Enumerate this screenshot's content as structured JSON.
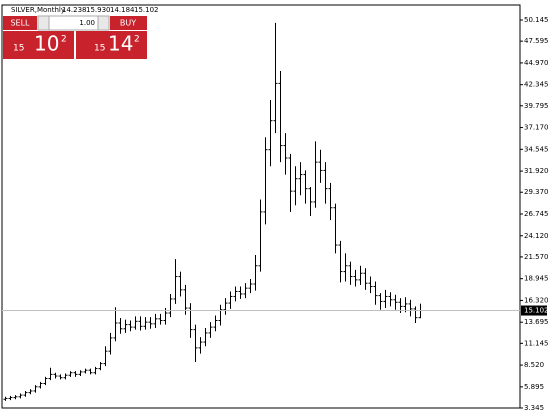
{
  "header": {
    "symbol": "SILVER,Monthly",
    "open": "14.238",
    "high": "15.930",
    "low": "14.184",
    "close": "15.102"
  },
  "trade_panel": {
    "sell": "SELL",
    "buy": "BUY",
    "volume": "1.00",
    "bid": {
      "prefix": "15",
      "big": "10",
      "sup": "2"
    },
    "ask": {
      "prefix": "15",
      "big": "14",
      "sup": "2"
    }
  },
  "chart_data": {
    "type": "ohlc",
    "color": "#000000",
    "ylim": [
      3.345,
      51.954
    ],
    "yticks": [
      3.345,
      5.895,
      {
        "value": 8.52,
        "label": "8.520"
      },
      11.145,
      13.695,
      {
        "value": 16.32,
        "label": "16.320"
      },
      18.945,
      {
        "value": 21.57,
        "label": "21.570"
      },
      {
        "value": 24.12,
        "label": "24.120"
      },
      26.745,
      {
        "value": 29.37,
        "label": "29.370"
      },
      {
        "value": 31.92,
        "label": "31.920"
      },
      34.545,
      {
        "value": 37.17,
        "label": "37.170"
      },
      39.795,
      42.345,
      {
        "value": 44.97,
        "label": "44.970"
      },
      47.595,
      50.145
    ],
    "current_price": {
      "value": 15.102,
      "label": "15.102"
    },
    "open": [
      4.4,
      4.5,
      4.6,
      4.7,
      4.9,
      5.2,
      5.4,
      5.9,
      6.3,
      6.9,
      7.4,
      7.2,
      7.0,
      7.3,
      7.6,
      7.4,
      7.7,
      7.9,
      7.6,
      8.1,
      8.7,
      10.2,
      11.8,
      13.6,
      12.9,
      13.4,
      13.1,
      13.8,
      13.2,
      13.7,
      13.5,
      14.1,
      13.9,
      14.8,
      16.5,
      19.2,
      17.6,
      15.4,
      12.8,
      10.6,
      11.3,
      12.4,
      13.1,
      13.9,
      15.2,
      16.0,
      16.8,
      17.4,
      17.1,
      17.8,
      18.3,
      20.5,
      27.0,
      34.5,
      38.0,
      42.5,
      35.0,
      33.5,
      29.5,
      31.0,
      31.5,
      29.8,
      28.2,
      33.0,
      32.0,
      29.8,
      27.5,
      23.0,
      19.8,
      20.5,
      19.2,
      18.8,
      19.6,
      18.4,
      18.0,
      16.9,
      16.2,
      16.8,
      16.4,
      16.1,
      15.6,
      15.9,
      15.3,
      14.238
    ],
    "high": [
      4.7,
      4.8,
      4.9,
      5.1,
      5.4,
      5.6,
      6.1,
      6.5,
      7.1,
      8.2,
      7.6,
      7.4,
      7.5,
      7.8,
      7.8,
      7.9,
      8.1,
      8.1,
      8.3,
      8.9,
      10.8,
      12.4,
      15.5,
      14.2,
      14.0,
      13.9,
      14.4,
      14.4,
      14.3,
      14.3,
      14.7,
      14.7,
      15.4,
      17.1,
      21.3,
      19.8,
      18.2,
      16.0,
      13.4,
      11.9,
      13.0,
      13.7,
      14.5,
      15.8,
      16.6,
      17.4,
      18.0,
      18.0,
      18.4,
      18.9,
      21.8,
      28.5,
      36.0,
      40.5,
      49.8,
      44.0,
      36.5,
      34.0,
      32.5,
      33.0,
      32.0,
      30.0,
      35.5,
      34.5,
      33.0,
      30.5,
      28.0,
      23.5,
      22.0,
      21.0,
      20.0,
      20.5,
      20.2,
      19.2,
      18.6,
      17.2,
      17.6,
      17.3,
      17.0,
      16.6,
      16.7,
      16.4,
      15.6,
      15.93
    ],
    "low": [
      4.2,
      4.3,
      4.4,
      4.5,
      4.7,
      5.0,
      5.2,
      5.7,
      6.1,
      6.7,
      6.9,
      6.8,
      6.8,
      7.1,
      7.1,
      7.2,
      7.5,
      7.4,
      7.4,
      7.9,
      8.4,
      9.8,
      11.4,
      12.3,
      12.4,
      12.6,
      12.8,
      12.7,
      12.8,
      12.9,
      13.0,
      13.4,
      13.4,
      14.3,
      15.9,
      16.8,
      14.6,
      11.8,
      8.9,
      9.9,
      10.8,
      11.8,
      12.6,
      13.3,
      14.6,
      15.3,
      16.2,
      16.5,
      16.6,
      17.2,
      17.5,
      19.8,
      25.5,
      32.5,
      36.5,
      33.0,
      31.5,
      27.0,
      27.8,
      29.0,
      28.0,
      26.5,
      27.5,
      30.5,
      28.0,
      26.0,
      22.0,
      18.5,
      18.6,
      18.2,
      18.0,
      18.2,
      17.6,
      17.2,
      15.8,
      15.2,
      15.4,
      15.6,
      15.2,
      14.8,
      14.9,
      14.4,
      13.6,
      14.184
    ],
    "close": [
      4.5,
      4.6,
      4.7,
      4.9,
      5.2,
      5.4,
      5.9,
      6.3,
      6.9,
      7.4,
      7.2,
      7.0,
      7.3,
      7.6,
      7.4,
      7.7,
      7.9,
      7.6,
      8.1,
      8.7,
      10.2,
      11.8,
      13.6,
      12.9,
      13.4,
      13.1,
      13.8,
      13.2,
      13.7,
      13.5,
      14.1,
      13.9,
      14.8,
      16.5,
      19.2,
      17.6,
      15.4,
      12.8,
      10.6,
      11.3,
      12.4,
      13.1,
      13.9,
      15.2,
      16.0,
      16.8,
      17.4,
      17.1,
      17.8,
      18.3,
      20.5,
      27.0,
      34.5,
      38.0,
      42.5,
      35.0,
      33.5,
      29.5,
      31.0,
      31.5,
      29.8,
      28.2,
      33.0,
      32.0,
      29.8,
      27.5,
      23.0,
      19.8,
      20.5,
      19.2,
      18.8,
      19.6,
      18.4,
      18.0,
      16.9,
      16.2,
      16.8,
      16.4,
      16.1,
      15.6,
      15.9,
      15.3,
      14.238,
      15.102
    ]
  }
}
